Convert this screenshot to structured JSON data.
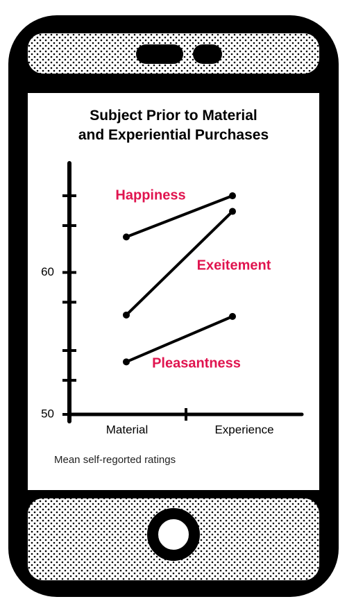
{
  "chart_data": {
    "type": "line",
    "title": "Subject Prior to Material and Experiential Purchases",
    "footnote": "Mean self-regorted ratings",
    "categories": [
      "Material",
      "Experience"
    ],
    "series": [
      {
        "name": "Happiness",
        "color": "#000000",
        "values": [
          62.5,
          65.4
        ]
      },
      {
        "name": "Exeitement",
        "color": "#000000",
        "values": [
          57.0,
          64.3
        ]
      },
      {
        "name": "Pleasantness",
        "color": "#000000",
        "values": [
          53.7,
          56.9
        ]
      }
    ],
    "label_color": "#e0144f",
    "ylim": [
      50,
      67.7
    ],
    "yticks": [
      50,
      60
    ],
    "yminorticks": [
      52.4,
      54.5,
      57.9,
      63.3,
      65.4
    ]
  }
}
